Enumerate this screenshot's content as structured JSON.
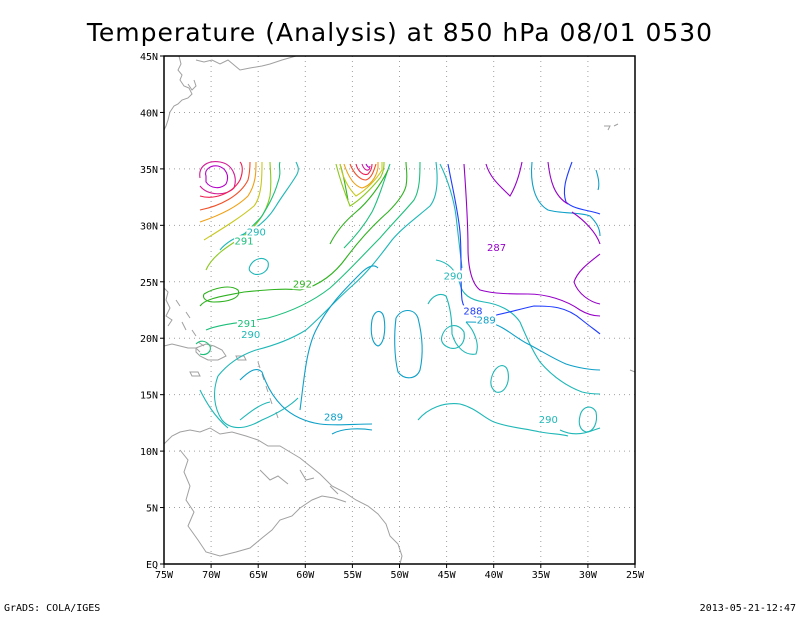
{
  "title": "Temperature (Analysis) at 850 hPa 08/01 0530",
  "footer": {
    "left": "GrADS: COLA/IGES",
    "right": "2013-05-21-12:47"
  },
  "map": {
    "lon_labels": [
      "75W",
      "70W",
      "65W",
      "60W",
      "55W",
      "50W",
      "45W",
      "40W",
      "35W",
      "30W",
      "25W"
    ],
    "lat_labels": [
      "EQ",
      "5N",
      "10N",
      "15N",
      "20N",
      "25N",
      "30N",
      "35N",
      "40N",
      "45N"
    ],
    "lon_range": [
      -75,
      -25
    ],
    "lat_range": [
      0,
      45
    ],
    "grid": "dotted",
    "contour_labels": [
      {
        "text": "290",
        "lon": -65.2,
        "lat": 29.2,
        "color": "#1fb7b7"
      },
      {
        "text": "291",
        "lon": -66.5,
        "lat": 28.4,
        "color": "#1cbf7a"
      },
      {
        "text": "292",
        "lon": -60.3,
        "lat": 24.6,
        "color": "#2fb21f"
      },
      {
        "text": "291",
        "lon": -66.2,
        "lat": 21.1,
        "color": "#1cbf7a"
      },
      {
        "text": "290",
        "lon": -65.8,
        "lat": 20.1,
        "color": "#1fb7b7"
      },
      {
        "text": "287",
        "lon": -39.7,
        "lat": 27.8,
        "color": "#9600c8"
      },
      {
        "text": "290",
        "lon": -44.3,
        "lat": 25.3,
        "color": "#1fb7b7"
      },
      {
        "text": "288",
        "lon": -42.2,
        "lat": 22.2,
        "color": "#1e3cff"
      },
      {
        "text": "289",
        "lon": -40.8,
        "lat": 21.4,
        "color": "#0ea0c8"
      },
      {
        "text": "289",
        "lon": -57.0,
        "lat": 12.8,
        "color": "#0ea0c8"
      },
      {
        "text": "290",
        "lon": -34.2,
        "lat": 12.6,
        "color": "#1fb7b7"
      }
    ],
    "colors": {
      "coast": "#a0a0a0",
      "frame": "#000000",
      "grid": "#a0a0a0",
      "t287": "#9600c8",
      "t288": "#1e3cff",
      "t289": "#0ea0c8",
      "t290": "#1fb7b7",
      "t291": "#1cbf7a",
      "t292": "#2fb21f",
      "t293": "#8cc81e",
      "t294": "#c8c81e",
      "t295": "#f0a014",
      "t296": "#f05028",
      "t297": "#f01e50",
      "t298": "#d21e96",
      "t299": "#b400c8"
    }
  }
}
